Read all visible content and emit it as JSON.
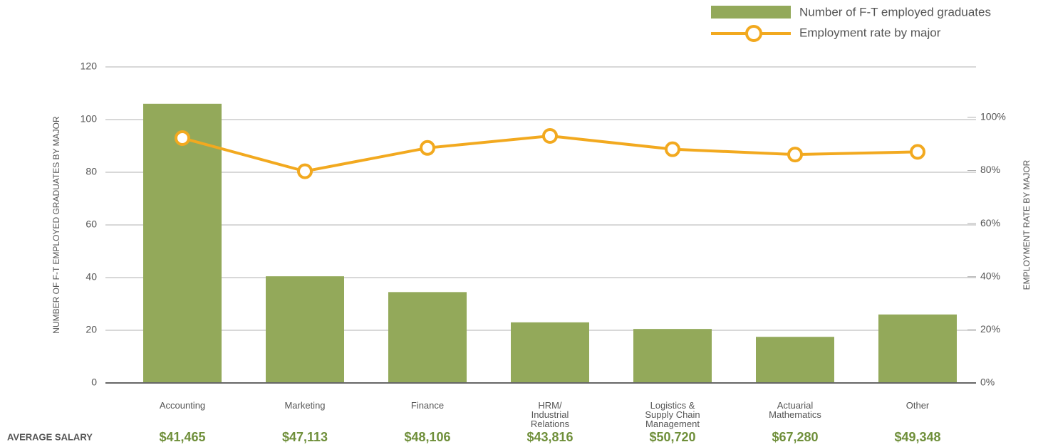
{
  "chart_data": {
    "type": "bar",
    "categories": [
      "Accounting",
      "Marketing",
      "Finance",
      "HRM/ Industrial Relations",
      "Logistics & Supply Chain Management",
      "Actuarial Mathematics",
      "Other"
    ],
    "series": [
      {
        "name": "Number of F-T employed graduates",
        "color": "#93a95a",
        "values": [
          106,
          40.5,
          34.5,
          23,
          20.5,
          17.5,
          26
        ]
      },
      {
        "name": "Employment rate by major",
        "type": "line",
        "axis": "y2",
        "color": "#f2a91f",
        "values": [
          92.2,
          79.7,
          88.5,
          93,
          88,
          86,
          87
        ]
      }
    ],
    "ylabel": "NUMBER OF F-T EMPLOYED GRADUATES BY MAJOR",
    "y2label": "EMPLOYMENT RATE BY MAJOR",
    "ylim": [
      0,
      120
    ],
    "yticks": [
      0,
      20,
      40,
      60,
      80,
      100,
      120
    ],
    "y2lim": [
      0,
      119
    ],
    "y2ticks": [
      {
        "value": 0,
        "label": "0%"
      },
      {
        "value": 20,
        "label": "20%"
      },
      {
        "value": 40,
        "label": "40%"
      },
      {
        "value": 60,
        "label": "60%"
      },
      {
        "value": 80,
        "label": "80%"
      },
      {
        "value": 100,
        "label": "100%"
      }
    ],
    "grid": true,
    "legend": "top-right",
    "salary_label": "AVERAGE SALARY",
    "salaries": [
      "$41,465",
      "$47,113",
      "$48,106",
      "$43,816",
      "$50,720",
      "$67,280",
      "$49,348"
    ]
  }
}
